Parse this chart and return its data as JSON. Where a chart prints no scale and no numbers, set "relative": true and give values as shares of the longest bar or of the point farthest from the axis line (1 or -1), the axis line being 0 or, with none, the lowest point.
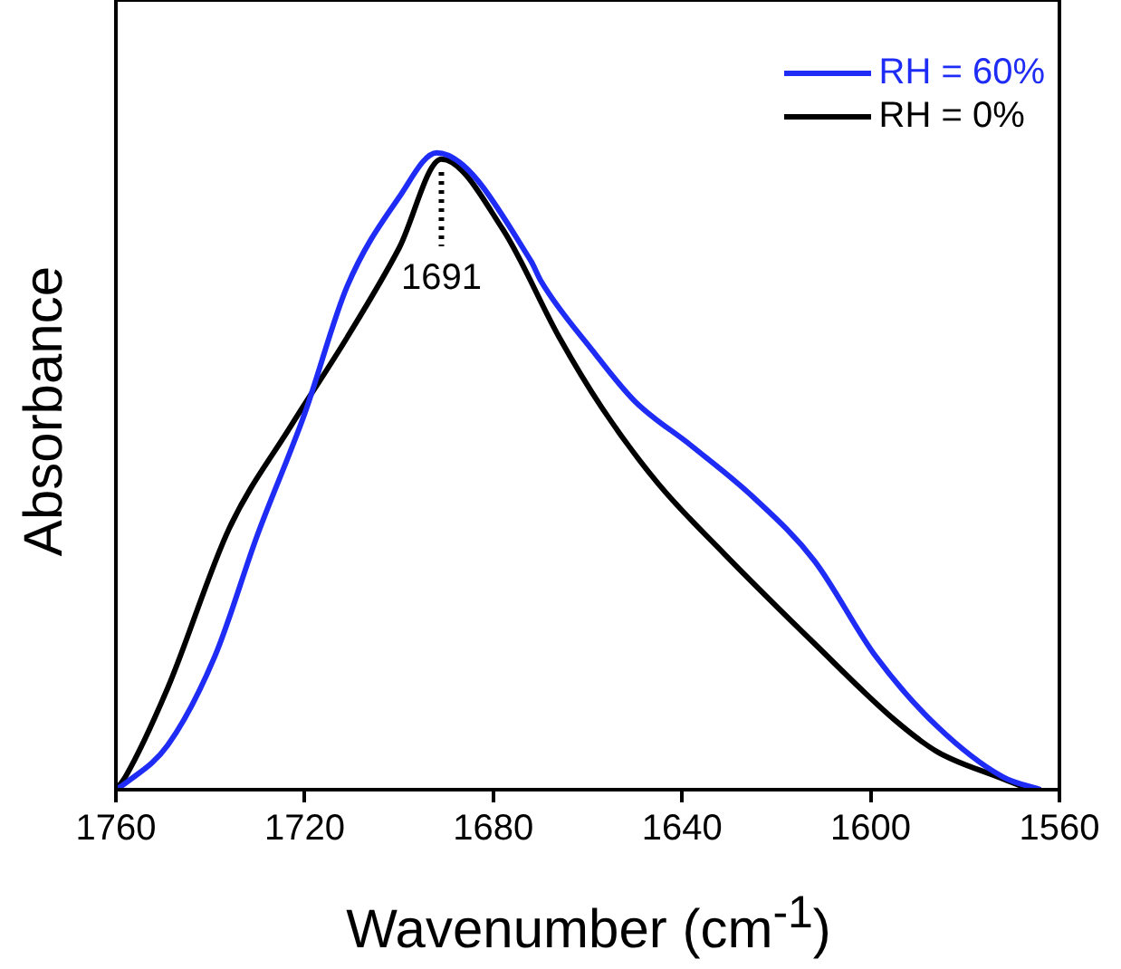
{
  "chart_data": {
    "type": "line",
    "relative": true,
    "xlabel": "Wavenumber (cm$^{-1}$)",
    "ylabel": "Absorbance",
    "xlim": [
      1760,
      1560
    ],
    "xticks": [
      1760,
      1720,
      1680,
      1640,
      1600,
      1560
    ],
    "legend": "top right",
    "marker": "none",
    "line_style": "solid",
    "grid": false,
    "ref_lines": [
      {
        "axis": "x",
        "value": 1691,
        "label": "1691",
        "line_style": "dotted",
        "color": "#000000"
      }
    ],
    "series": [
      {
        "name": "RH = 60%",
        "color": "#1f2cf5",
        "x": [
          1760,
          1758,
          1749,
          1739,
          1730,
          1720,
          1711,
          1700,
          1692,
          1672,
          1670,
          1659,
          1650,
          1638,
          1625,
          1612,
          1599,
          1586,
          1572,
          1564
        ],
        "values": [
          0,
          0.01,
          0.07,
          0.21,
          0.4,
          0.59,
          0.79,
          0.93,
          1,
          0.83,
          0.8,
          0.69,
          0.61,
          0.54,
          0.46,
          0.36,
          0.21,
          0.1,
          0.02,
          0
        ]
      },
      {
        "name": "RH = 0%",
        "color": "#000000",
        "x": [
          1760,
          1758,
          1749,
          1736,
          1723,
          1711,
          1700,
          1691,
          1678,
          1666,
          1657,
          1645,
          1631,
          1612,
          1595,
          1586,
          1573,
          1566
        ],
        "values": [
          0,
          0.02,
          0.16,
          0.41,
          0.57,
          0.71,
          0.85,
          0.99,
          0.88,
          0.71,
          0.6,
          0.48,
          0.37,
          0.23,
          0.11,
          0.06,
          0.02,
          0
        ]
      }
    ]
  }
}
